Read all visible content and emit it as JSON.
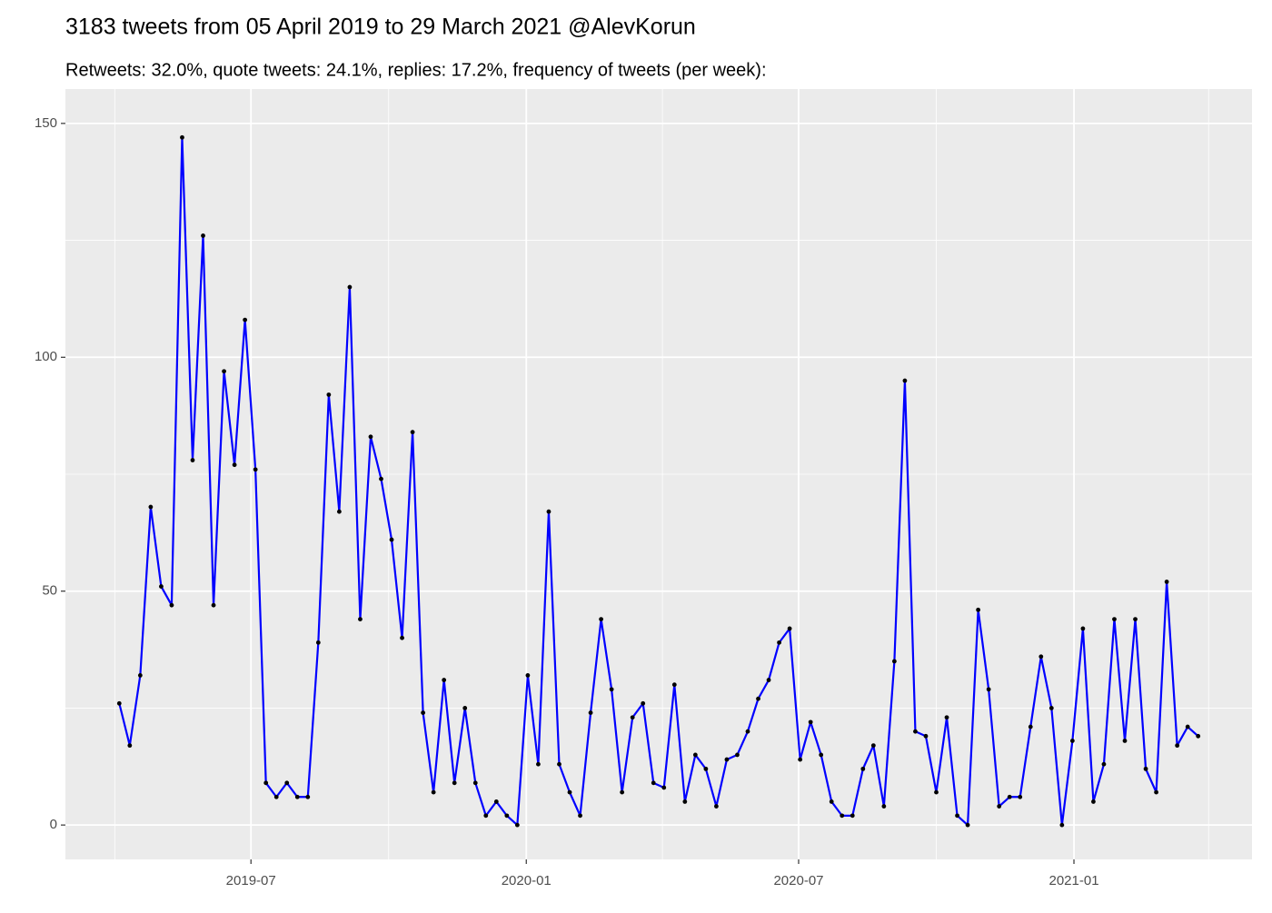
{
  "chart_data": {
    "type": "line",
    "title": "3183 tweets from 05 April 2019 to 29 March 2021 @AlevKorun",
    "subtitle": "Retweets: 32.0%, quote tweets: 24.1%, replies: 17.2%, frequency of tweets (per week):",
    "x": [
      "2019-04-04",
      "2019-04-11",
      "2019-04-18",
      "2019-04-25",
      "2019-05-02",
      "2019-05-09",
      "2019-05-16",
      "2019-05-23",
      "2019-05-30",
      "2019-06-06",
      "2019-06-13",
      "2019-06-20",
      "2019-06-27",
      "2019-07-04",
      "2019-07-11",
      "2019-07-18",
      "2019-07-25",
      "2019-08-01",
      "2019-08-08",
      "2019-08-15",
      "2019-08-22",
      "2019-08-29",
      "2019-09-05",
      "2019-09-12",
      "2019-09-19",
      "2019-09-26",
      "2019-10-03",
      "2019-10-10",
      "2019-10-17",
      "2019-10-24",
      "2019-10-31",
      "2019-11-07",
      "2019-11-14",
      "2019-11-21",
      "2019-11-28",
      "2019-12-05",
      "2019-12-12",
      "2019-12-19",
      "2019-12-26",
      "2020-01-02",
      "2020-01-09",
      "2020-01-16",
      "2020-01-23",
      "2020-01-30",
      "2020-02-06",
      "2020-02-13",
      "2020-02-20",
      "2020-02-27",
      "2020-03-05",
      "2020-03-12",
      "2020-03-19",
      "2020-03-26",
      "2020-04-02",
      "2020-04-09",
      "2020-04-16",
      "2020-04-23",
      "2020-04-30",
      "2020-05-07",
      "2020-05-14",
      "2020-05-21",
      "2020-05-28",
      "2020-06-04",
      "2020-06-11",
      "2020-06-18",
      "2020-06-25",
      "2020-07-02",
      "2020-07-09",
      "2020-07-16",
      "2020-07-23",
      "2020-07-30",
      "2020-08-06",
      "2020-08-13",
      "2020-08-20",
      "2020-08-27",
      "2020-09-03",
      "2020-09-10",
      "2020-09-17",
      "2020-09-24",
      "2020-10-01",
      "2020-10-08",
      "2020-10-15",
      "2020-10-22",
      "2020-10-29",
      "2020-11-05",
      "2020-11-12",
      "2020-11-19",
      "2020-11-26",
      "2020-12-03",
      "2020-12-10",
      "2020-12-17",
      "2020-12-24",
      "2020-12-31",
      "2021-01-07",
      "2021-01-14",
      "2021-01-21",
      "2021-01-28",
      "2021-02-04",
      "2021-02-11",
      "2021-02-18",
      "2021-02-25",
      "2021-03-04",
      "2021-03-11",
      "2021-03-18",
      "2021-03-25"
    ],
    "values": [
      26,
      17,
      32,
      68,
      51,
      47,
      147,
      78,
      126,
      47,
      97,
      77,
      108,
      76,
      9,
      6,
      9,
      6,
      6,
      39,
      92,
      67,
      115,
      44,
      83,
      74,
      61,
      40,
      84,
      24,
      7,
      31,
      9,
      25,
      9,
      2,
      5,
      2,
      0,
      32,
      13,
      67,
      13,
      7,
      2,
      24,
      44,
      29,
      7,
      23,
      26,
      9,
      8,
      30,
      5,
      15,
      12,
      4,
      14,
      15,
      20,
      27,
      31,
      39,
      42,
      14,
      22,
      15,
      5,
      2,
      2,
      12,
      17,
      4,
      35,
      95,
      20,
      19,
      7,
      23,
      2,
      0,
      46,
      29,
      4,
      6,
      6,
      21,
      36,
      25,
      0,
      18,
      42,
      5,
      13,
      44,
      18,
      44,
      12,
      7,
      52,
      17,
      21,
      19
    ],
    "color": "#0000ff",
    "point_color": "#000000",
    "xlim": [
      "2019-02-27",
      "2021-04-30"
    ],
    "xticks": [
      {
        "value": "2019-07-01",
        "label": "2019-07"
      },
      {
        "value": "2020-01-01",
        "label": "2020-01"
      },
      {
        "value": "2020-07-01",
        "label": "2020-07"
      },
      {
        "value": "2021-01-01",
        "label": "2021-01"
      }
    ],
    "minor_xticks": [
      "2019-04-01",
      "2019-10-01",
      "2020-04-01",
      "2020-10-01",
      "2021-04-01"
    ],
    "ylim": [
      -7.35,
      157.35
    ],
    "yticks": [
      0,
      50,
      100,
      150
    ],
    "minor_yticks": [
      25,
      75,
      125
    ],
    "grid": true
  }
}
